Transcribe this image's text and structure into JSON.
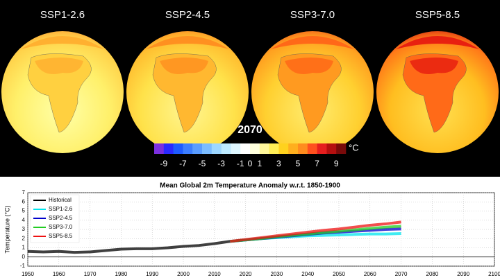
{
  "maps": {
    "panels": [
      "SSP1-2.6",
      "SSP2-4.5",
      "SSP3-7.0",
      "SSP5-8.5"
    ],
    "year": "2070",
    "colorbar": {
      "lim": [
        -10,
        10
      ],
      "ticks": [
        -9,
        -7,
        -5,
        -3,
        -1,
        0,
        1,
        3,
        5,
        7,
        9
      ],
      "unit": "°C",
      "colors": [
        "#7b2fe0",
        "#2a2aff",
        "#1e5bff",
        "#3c7eff",
        "#5a9dff",
        "#7bbcff",
        "#9dd7ff",
        "#bdeaff",
        "#def7ff",
        "#ffffff",
        "#ffffdc",
        "#fff79a",
        "#ffee55",
        "#ffd21e",
        "#ffaf1e",
        "#ff8c1e",
        "#ff501e",
        "#e61e1e",
        "#b40f0f",
        "#780a0a"
      ]
    }
  },
  "chart_data": {
    "type": "line",
    "title": "Mean Global 2m Temperature Anomaly w.r.t. 1850-1900",
    "y_label": "Temperature (°C)",
    "xlim": [
      1950,
      2100
    ],
    "xticks": [
      1950,
      1960,
      1970,
      1980,
      1990,
      2000,
      2010,
      2020,
      2030,
      2040,
      2050,
      2060,
      2070,
      2080,
      2090,
      2100
    ],
    "ylim": [
      -1,
      7
    ],
    "yticks": [
      -1,
      0,
      1,
      2,
      3,
      4,
      5,
      6,
      7
    ],
    "grid": true,
    "legend": "upper-left",
    "series": [
      {
        "name": "Historical",
        "color": "#000000",
        "x": [
          1950,
          1955,
          1960,
          1965,
          1970,
          1975,
          1980,
          1985,
          1990,
          1995,
          2000,
          2005,
          2010,
          2015
        ],
        "values": [
          0.6,
          0.55,
          0.6,
          0.5,
          0.55,
          0.7,
          0.85,
          0.9,
          0.9,
          1.0,
          1.15,
          1.25,
          1.45,
          1.7
        ]
      },
      {
        "name": "SSP1-2.6",
        "color": "#00e5ee",
        "x": [
          2015,
          2020,
          2025,
          2030,
          2035,
          2040,
          2045,
          2050,
          2055,
          2060,
          2065,
          2070
        ],
        "values": [
          1.7,
          1.85,
          2.0,
          2.1,
          2.2,
          2.3,
          2.35,
          2.4,
          2.45,
          2.5,
          2.5,
          2.55
        ]
      },
      {
        "name": "SSP2-4.5",
        "color": "#0000cc",
        "x": [
          2015,
          2020,
          2025,
          2030,
          2035,
          2040,
          2045,
          2050,
          2055,
          2060,
          2065,
          2070
        ],
        "values": [
          1.7,
          1.85,
          2.0,
          2.15,
          2.3,
          2.45,
          2.6,
          2.7,
          2.8,
          2.9,
          3.0,
          3.05
        ]
      },
      {
        "name": "SSP3-7.0",
        "color": "#22cc22",
        "x": [
          2015,
          2020,
          2025,
          2030,
          2035,
          2040,
          2045,
          2050,
          2055,
          2060,
          2065,
          2070
        ],
        "values": [
          1.7,
          1.85,
          2.0,
          2.2,
          2.35,
          2.5,
          2.65,
          2.8,
          2.95,
          3.1,
          3.25,
          3.35
        ]
      },
      {
        "name": "SSP5-8.5",
        "color": "#ee1111",
        "x": [
          2015,
          2020,
          2025,
          2030,
          2035,
          2040,
          2045,
          2050,
          2055,
          2060,
          2065,
          2070
        ],
        "values": [
          1.7,
          1.9,
          2.1,
          2.3,
          2.5,
          2.7,
          2.9,
          3.05,
          3.25,
          3.45,
          3.6,
          3.8
        ]
      }
    ]
  }
}
